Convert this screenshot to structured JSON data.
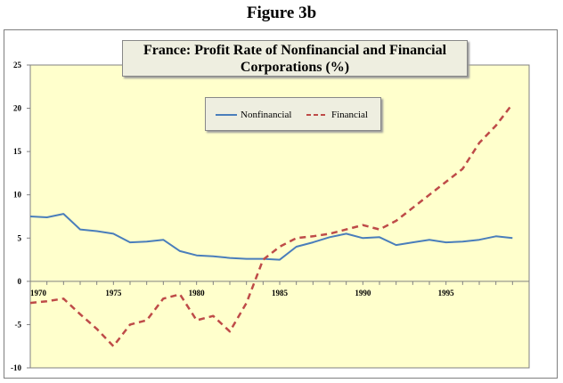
{
  "figure_title": "Figure 3b",
  "chart_data": {
    "type": "line",
    "title": "France: Profit Rate of Nonfinancial and Financial Corporations (%)",
    "title_lines": [
      "France: Profit Rate of Nonfinancial and Financial",
      "Corporations (%)"
    ],
    "xlabel": "",
    "ylabel": "",
    "x": [
      1970,
      1971,
      1972,
      1973,
      1974,
      1975,
      1976,
      1977,
      1978,
      1979,
      1980,
      1981,
      1982,
      1983,
      1984,
      1985,
      1986,
      1987,
      1988,
      1989,
      1990,
      1991,
      1992,
      1993,
      1994,
      1995,
      1996,
      1997,
      1998,
      1999
    ],
    "xlim": [
      1970,
      2000
    ],
    "x_ticks": [
      1970,
      1975,
      1980,
      1985,
      1990,
      1995
    ],
    "ylim": [
      -10,
      25
    ],
    "y_ticks": [
      25,
      20,
      15,
      10,
      5,
      0,
      -5,
      -10
    ],
    "grid": false,
    "legend_position": "upper-middle",
    "plot_background": "#ffffcc",
    "series": [
      {
        "name": "Nonfinancial",
        "color": "#4a7ebb",
        "style": "solid",
        "values": [
          7.5,
          7.4,
          7.8,
          6.0,
          5.8,
          5.5,
          4.5,
          4.6,
          4.8,
          3.5,
          3.0,
          2.9,
          2.7,
          2.6,
          2.6,
          2.5,
          4.0,
          4.5,
          5.1,
          5.5,
          5.0,
          5.1,
          4.2,
          4.5,
          4.8,
          4.5,
          4.6,
          4.8,
          5.2,
          5.0
        ]
      },
      {
        "name": "Financial",
        "color": "#be4b48",
        "style": "dashed",
        "values": [
          -2.5,
          -2.3,
          -2.0,
          -3.8,
          -5.5,
          -7.5,
          -5.0,
          -4.5,
          -2.0,
          -1.5,
          -4.5,
          -4.0,
          -5.8,
          -2.5,
          2.5,
          4.0,
          5.0,
          5.2,
          5.5,
          6.0,
          6.5,
          6.0,
          7.0,
          8.5,
          10.0,
          11.5,
          13.0,
          16.0,
          18.0,
          20.5
        ]
      }
    ]
  }
}
